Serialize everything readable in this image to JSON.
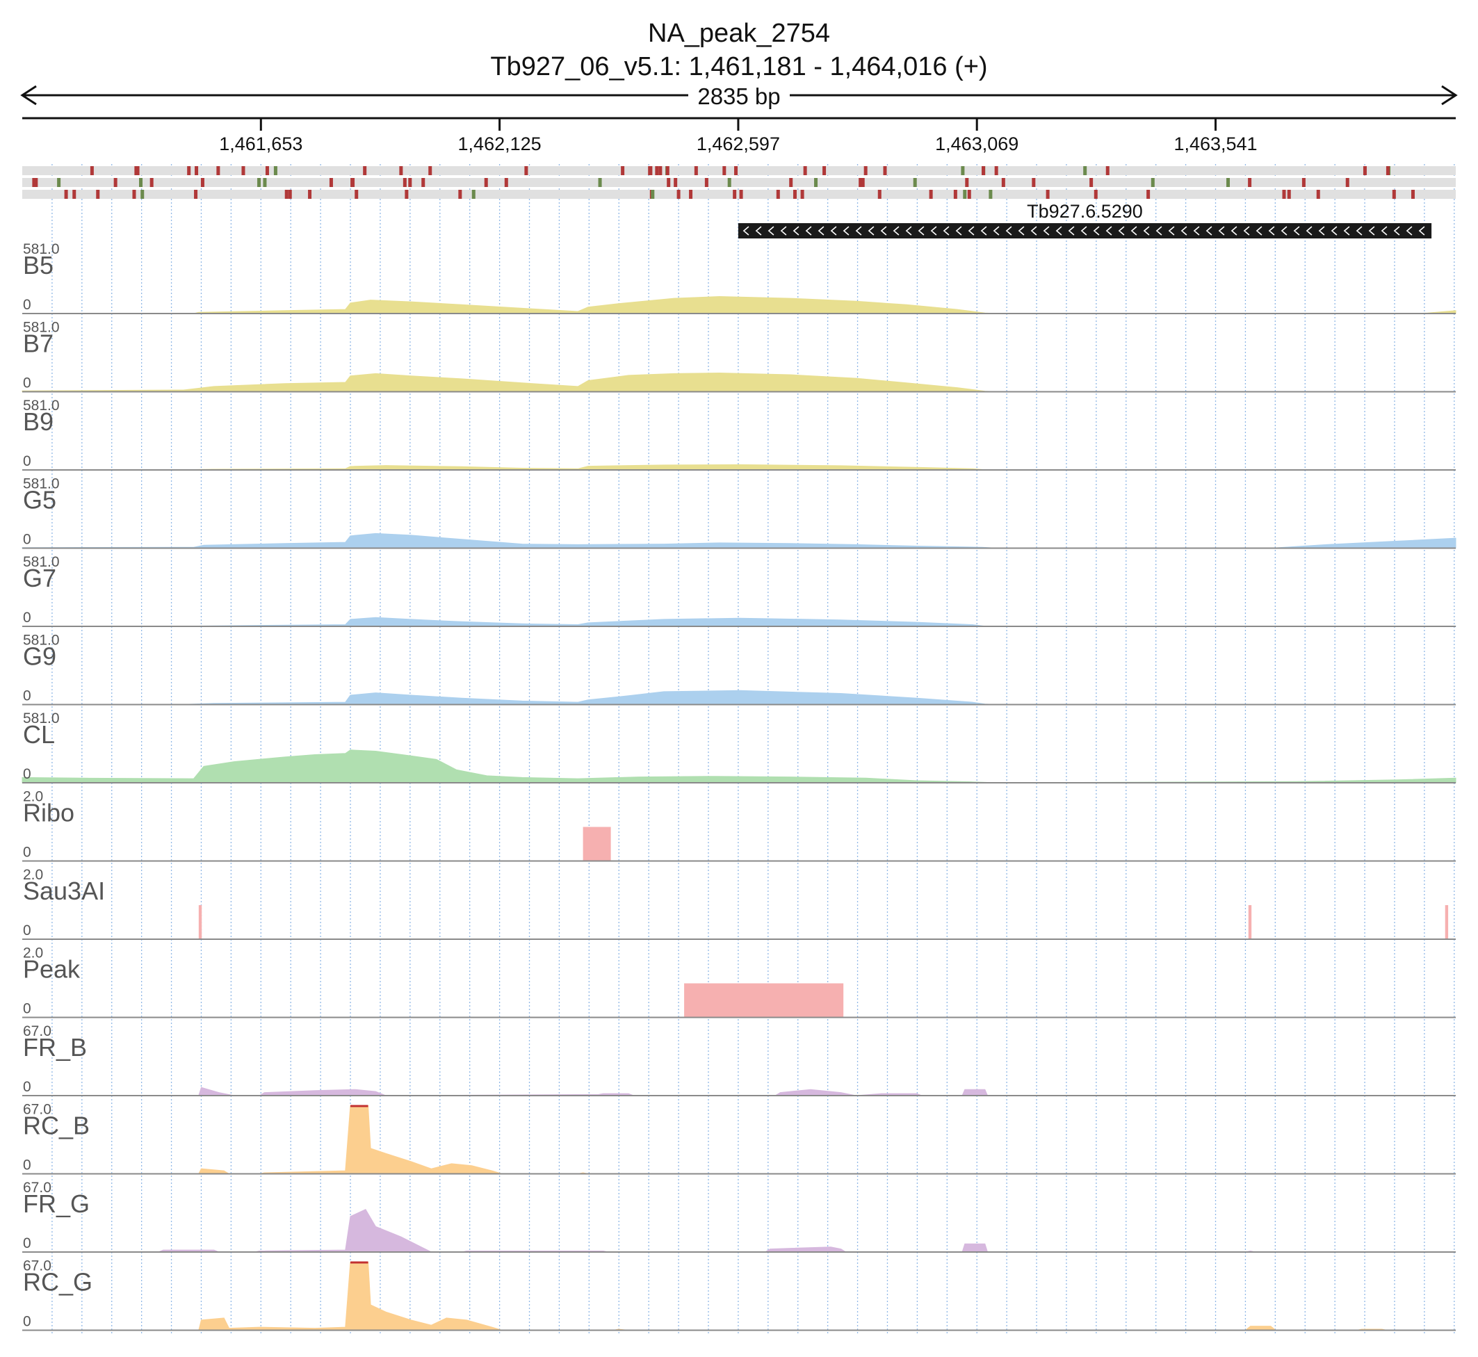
{
  "header": {
    "title": "NA_peak_2754",
    "subtitle": "Tb927_06_v5.1: 1,461,181 - 1,464,016 (+)",
    "span_label": "2835 bp"
  },
  "chart_data": {
    "type": "area",
    "genome_range": [
      1461181,
      1464016
    ],
    "x_ticks": [
      1461653,
      1462125,
      1462597,
      1463069,
      1463541
    ],
    "x_tick_labels": [
      "1,461,653",
      "1,462,125",
      "1,462,597",
      "1,463,069",
      "1,463,541"
    ],
    "grid": true,
    "gene": {
      "name": "Tb927.6.5290",
      "start": 1462597,
      "end": 1463968,
      "strand": "-"
    },
    "tracks": [
      {
        "name": "B5",
        "max": 581.0,
        "max_label": "581.0",
        "min_label": "0",
        "color": "#e8df90",
        "profile": [
          [
            1461181,
            0
          ],
          [
            1461520,
            0
          ],
          [
            1461530,
            10
          ],
          [
            1461700,
            25
          ],
          [
            1461820,
            35
          ],
          [
            1461830,
            90
          ],
          [
            1461870,
            115
          ],
          [
            1461950,
            100
          ],
          [
            1462050,
            75
          ],
          [
            1462170,
            45
          ],
          [
            1462280,
            18
          ],
          [
            1462300,
            55
          ],
          [
            1462360,
            85
          ],
          [
            1462470,
            130
          ],
          [
            1462560,
            145
          ],
          [
            1462700,
            130
          ],
          [
            1462830,
            105
          ],
          [
            1462930,
            75
          ],
          [
            1463030,
            35
          ],
          [
            1463085,
            5
          ],
          [
            1463110,
            0
          ],
          [
            1463930,
            0
          ],
          [
            1463960,
            5
          ],
          [
            1464016,
            25
          ]
        ]
      },
      {
        "name": "B7",
        "max": 581.0,
        "max_label": "581.0",
        "min_label": "0",
        "color": "#e8df90",
        "profile": [
          [
            1461181,
            8
          ],
          [
            1461500,
            15
          ],
          [
            1461560,
            45
          ],
          [
            1461700,
            70
          ],
          [
            1461820,
            80
          ],
          [
            1461830,
            135
          ],
          [
            1461880,
            155
          ],
          [
            1461950,
            135
          ],
          [
            1462050,
            110
          ],
          [
            1462170,
            75
          ],
          [
            1462280,
            45
          ],
          [
            1462300,
            95
          ],
          [
            1462380,
            140
          ],
          [
            1462470,
            155
          ],
          [
            1462560,
            160
          ],
          [
            1462700,
            145
          ],
          [
            1462830,
            115
          ],
          [
            1462930,
            75
          ],
          [
            1463030,
            35
          ],
          [
            1463085,
            5
          ],
          [
            1463110,
            0
          ],
          [
            1464016,
            0
          ]
        ]
      },
      {
        "name": "B9",
        "max": 581.0,
        "max_label": "581.0",
        "min_label": "0",
        "color": "#e8df90",
        "profile": [
          [
            1461181,
            0
          ],
          [
            1461500,
            2
          ],
          [
            1461560,
            6
          ],
          [
            1461820,
            10
          ],
          [
            1461830,
            30
          ],
          [
            1461900,
            38
          ],
          [
            1462050,
            28
          ],
          [
            1462170,
            15
          ],
          [
            1462280,
            10
          ],
          [
            1462300,
            32
          ],
          [
            1462450,
            42
          ],
          [
            1462600,
            45
          ],
          [
            1462800,
            36
          ],
          [
            1462950,
            22
          ],
          [
            1463060,
            10
          ],
          [
            1463085,
            2
          ],
          [
            1463110,
            0
          ],
          [
            1464016,
            0
          ]
        ]
      },
      {
        "name": "G5",
        "max": 581.0,
        "max_label": "581.0",
        "min_label": "0",
        "color": "#acd0ee",
        "profile": [
          [
            1461181,
            5
          ],
          [
            1461520,
            8
          ],
          [
            1461540,
            25
          ],
          [
            1461700,
            40
          ],
          [
            1461820,
            50
          ],
          [
            1461830,
            105
          ],
          [
            1461880,
            125
          ],
          [
            1461950,
            110
          ],
          [
            1462050,
            75
          ],
          [
            1462170,
            35
          ],
          [
            1462280,
            30
          ],
          [
            1462450,
            35
          ],
          [
            1462560,
            45
          ],
          [
            1462700,
            40
          ],
          [
            1462830,
            30
          ],
          [
            1462950,
            18
          ],
          [
            1463080,
            8
          ],
          [
            1463110,
            0
          ],
          [
            1463650,
            0
          ],
          [
            1463760,
            30
          ],
          [
            1463900,
            60
          ],
          [
            1464016,
            85
          ]
        ]
      },
      {
        "name": "G7",
        "max": 581.0,
        "max_label": "581.0",
        "min_label": "0",
        "color": "#acd0ee",
        "profile": [
          [
            1461181,
            0
          ],
          [
            1461500,
            2
          ],
          [
            1461560,
            5
          ],
          [
            1461820,
            15
          ],
          [
            1461830,
            60
          ],
          [
            1461880,
            75
          ],
          [
            1461950,
            60
          ],
          [
            1462050,
            40
          ],
          [
            1462170,
            22
          ],
          [
            1462280,
            15
          ],
          [
            1462300,
            30
          ],
          [
            1462450,
            60
          ],
          [
            1462600,
            70
          ],
          [
            1462800,
            55
          ],
          [
            1462950,
            35
          ],
          [
            1463060,
            15
          ],
          [
            1463085,
            2
          ],
          [
            1463110,
            0
          ],
          [
            1464016,
            3
          ]
        ]
      },
      {
        "name": "G9",
        "max": 581.0,
        "max_label": "581.0",
        "min_label": "0",
        "color": "#acd0ee",
        "profile": [
          [
            1461181,
            0
          ],
          [
            1461500,
            2
          ],
          [
            1461560,
            10
          ],
          [
            1461820,
            20
          ],
          [
            1461830,
            80
          ],
          [
            1461880,
            100
          ],
          [
            1461950,
            80
          ],
          [
            1462050,
            55
          ],
          [
            1462170,
            30
          ],
          [
            1462280,
            20
          ],
          [
            1462300,
            40
          ],
          [
            1462380,
            75
          ],
          [
            1462450,
            110
          ],
          [
            1462600,
            120
          ],
          [
            1462800,
            95
          ],
          [
            1462950,
            55
          ],
          [
            1463060,
            20
          ],
          [
            1463085,
            5
          ],
          [
            1463110,
            0
          ],
          [
            1464016,
            0
          ]
        ]
      },
      {
        "name": "CL",
        "max": 581.0,
        "max_label": "581.0",
        "min_label": "0",
        "color": "#b0dfb0",
        "profile": [
          [
            1461181,
            45
          ],
          [
            1461300,
            40
          ],
          [
            1461520,
            35
          ],
          [
            1461540,
            140
          ],
          [
            1461600,
            180
          ],
          [
            1461700,
            220
          ],
          [
            1461760,
            240
          ],
          [
            1461820,
            250
          ],
          [
            1461830,
            280
          ],
          [
            1461880,
            270
          ],
          [
            1461950,
            230
          ],
          [
            1462000,
            200
          ],
          [
            1462040,
            110
          ],
          [
            1462100,
            60
          ],
          [
            1462170,
            45
          ],
          [
            1462280,
            35
          ],
          [
            1462400,
            50
          ],
          [
            1462550,
            55
          ],
          [
            1462700,
            50
          ],
          [
            1462850,
            40
          ],
          [
            1462950,
            18
          ],
          [
            1463060,
            8
          ],
          [
            1463110,
            0
          ],
          [
            1463700,
            10
          ],
          [
            1463900,
            25
          ],
          [
            1464016,
            40
          ]
        ]
      },
      {
        "name": "Ribo",
        "max": 2.0,
        "max_label": "2.0",
        "min_label": "0",
        "color": "#f6b0b0",
        "segments": [
          [
            1462290,
            1462345,
            1
          ]
        ]
      },
      {
        "name": "Sau3AI",
        "max": 2.0,
        "max_label": "2.0",
        "min_label": "0",
        "color": "#f6b0b0",
        "segments": [
          [
            1461530,
            1461536,
            1
          ],
          [
            1463606,
            1463612,
            1
          ],
          [
            1463995,
            1464001,
            1
          ]
        ]
      },
      {
        "name": "Peak",
        "max": 2.0,
        "max_label": "2.0",
        "min_label": "0",
        "color": "#f6b0b0",
        "segments": [
          [
            1462490,
            1462805,
            1
          ]
        ]
      },
      {
        "name": "FR_B",
        "max": 67.0,
        "max_label": "67.0",
        "min_label": "0",
        "color": "#d6b8de",
        "profile": [
          [
            1461181,
            0
          ],
          [
            1461530,
            0
          ],
          [
            1461535,
            8
          ],
          [
            1461570,
            3
          ],
          [
            1461600,
            0
          ],
          [
            1461650,
            0
          ],
          [
            1461660,
            3
          ],
          [
            1461760,
            5
          ],
          [
            1461840,
            6
          ],
          [
            1461880,
            4
          ],
          [
            1461900,
            0
          ],
          [
            1462280,
            1
          ],
          [
            1462320,
            1
          ],
          [
            1462330,
            2
          ],
          [
            1462380,
            2
          ],
          [
            1462390,
            0
          ],
          [
            1462670,
            0
          ],
          [
            1462680,
            3
          ],
          [
            1462740,
            6
          ],
          [
            1462800,
            3
          ],
          [
            1462830,
            0
          ],
          [
            1462880,
            2
          ],
          [
            1462950,
            2
          ],
          [
            1462960,
            0
          ],
          [
            1463040,
            0
          ],
          [
            1463045,
            6
          ],
          [
            1463085,
            6
          ],
          [
            1463090,
            0
          ],
          [
            1464016,
            0
          ]
        ]
      },
      {
        "name": "RC_B",
        "max": 67.0,
        "max_label": "67.0",
        "min_label": "0",
        "color": "#fccf8f",
        "cap_color": "#c23030",
        "profile": [
          [
            1461181,
            0
          ],
          [
            1461530,
            0
          ],
          [
            1461535,
            5
          ],
          [
            1461580,
            3
          ],
          [
            1461590,
            0
          ],
          [
            1461650,
            0
          ],
          [
            1461660,
            1
          ],
          [
            1461820,
            3
          ],
          [
            1461830,
            67
          ],
          [
            1461865,
            67
          ],
          [
            1461870,
            25
          ],
          [
            1461900,
            20
          ],
          [
            1461950,
            12
          ],
          [
            1461990,
            5
          ],
          [
            1462030,
            10
          ],
          [
            1462070,
            8
          ],
          [
            1462110,
            3
          ],
          [
            1462130,
            0
          ],
          [
            1462280,
            0
          ],
          [
            1462290,
            1
          ],
          [
            1462300,
            0
          ],
          [
            1464016,
            0
          ]
        ]
      },
      {
        "name": "FR_G",
        "max": 67.0,
        "max_label": "67.0",
        "min_label": "0",
        "color": "#d6b8de",
        "profile": [
          [
            1461181,
            0
          ],
          [
            1461450,
            0
          ],
          [
            1461460,
            2
          ],
          [
            1461560,
            2
          ],
          [
            1461570,
            0
          ],
          [
            1461640,
            0
          ],
          [
            1461650,
            1
          ],
          [
            1461820,
            2
          ],
          [
            1461830,
            35
          ],
          [
            1461860,
            42
          ],
          [
            1461880,
            25
          ],
          [
            1461930,
            15
          ],
          [
            1461970,
            5
          ],
          [
            1461990,
            0
          ],
          [
            1462050,
            0
          ],
          [
            1462060,
            1
          ],
          [
            1462330,
            1
          ],
          [
            1462340,
            0
          ],
          [
            1462650,
            0
          ],
          [
            1462660,
            3
          ],
          [
            1462780,
            5
          ],
          [
            1462800,
            3
          ],
          [
            1462810,
            0
          ],
          [
            1463040,
            0
          ],
          [
            1463045,
            8
          ],
          [
            1463085,
            8
          ],
          [
            1463090,
            0
          ],
          [
            1463600,
            0
          ],
          [
            1463610,
            1
          ],
          [
            1463620,
            0
          ],
          [
            1464016,
            0
          ]
        ]
      },
      {
        "name": "RC_G",
        "max": 67.0,
        "max_label": "67.0",
        "min_label": "0",
        "color": "#fccf8f",
        "cap_color": "#c23030",
        "profile": [
          [
            1461181,
            0
          ],
          [
            1461530,
            0
          ],
          [
            1461535,
            10
          ],
          [
            1461580,
            12
          ],
          [
            1461590,
            2
          ],
          [
            1461650,
            3
          ],
          [
            1461760,
            2
          ],
          [
            1461820,
            3
          ],
          [
            1461830,
            67
          ],
          [
            1461865,
            67
          ],
          [
            1461870,
            25
          ],
          [
            1461900,
            18
          ],
          [
            1461950,
            10
          ],
          [
            1461990,
            5
          ],
          [
            1462020,
            12
          ],
          [
            1462060,
            10
          ],
          [
            1462110,
            3
          ],
          [
            1462130,
            0
          ],
          [
            1462350,
            0
          ],
          [
            1462360,
            1
          ],
          [
            1462380,
            0
          ],
          [
            1463600,
            0
          ],
          [
            1463610,
            4
          ],
          [
            1463650,
            4
          ],
          [
            1463660,
            0
          ],
          [
            1463820,
            0
          ],
          [
            1463830,
            1
          ],
          [
            1463870,
            1
          ],
          [
            1463880,
            0
          ],
          [
            1464016,
            0
          ]
        ]
      }
    ]
  }
}
